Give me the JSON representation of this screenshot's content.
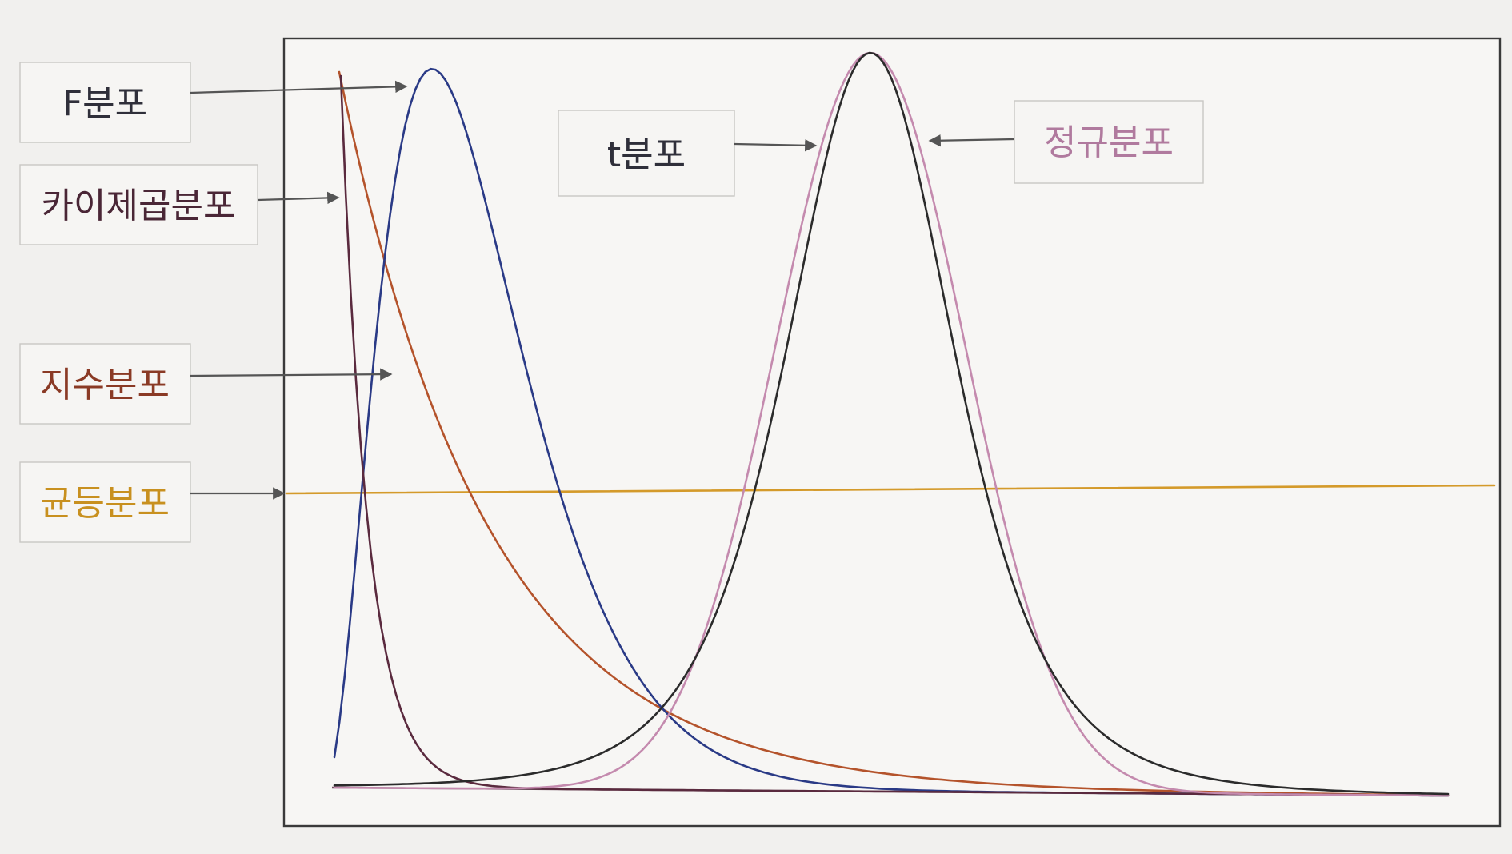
{
  "labels": {
    "f": "F분포",
    "chi": "카이제곱분포",
    "exp": "지수분포",
    "uniform": "균등분포",
    "t": "t분포",
    "normal": "정규분포"
  },
  "colors": {
    "f": "#2a3a86",
    "chi": "#5a2a3e",
    "exp": "#b4532b",
    "uniform": "#d49a2a",
    "t": "#2b2b2b",
    "normal": "#c48aae",
    "label_text": "#2f2f3a",
    "chi_text": "#4a2636",
    "exp_text": "#8a3a25",
    "uniform_text": "#c8901f",
    "normal_text": "#b07a9e"
  }
}
